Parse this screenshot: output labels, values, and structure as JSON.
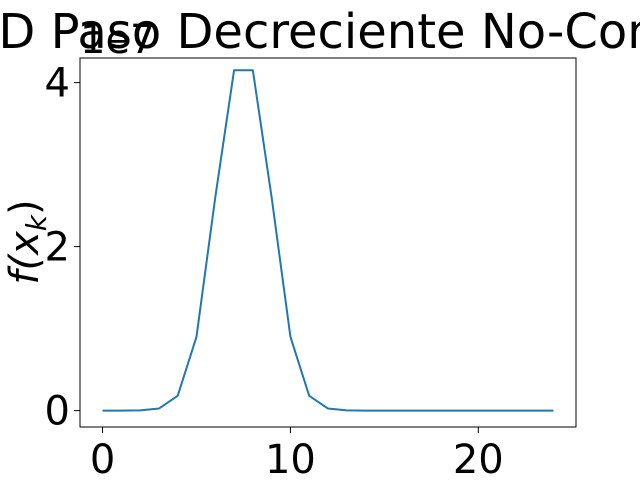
{
  "chart_data": {
    "type": "line",
    "title": "D Paso Decreciente No-Con",
    "xlabel": "",
    "ylabel": "f(x",
    "ylabel_subscript": "k",
    "ylabel_close": ")",
    "offset_label": "1e7",
    "xlim": [
      -1.2,
      25.2
    ],
    "ylim": [
      -0.2,
      4.3
    ],
    "x_ticks": [
      0,
      10,
      20
    ],
    "y_ticks": [
      0,
      2,
      4
    ],
    "grid": false,
    "series": [
      {
        "color": "#1f77b4",
        "x": [
          0,
          1,
          2,
          3,
          4,
          5,
          6,
          7,
          8,
          9,
          10,
          11,
          12,
          13,
          14,
          15,
          16,
          17,
          18,
          19,
          20,
          21,
          22,
          23,
          24
        ],
        "y": [
          0.0,
          0.0,
          0.003,
          0.025,
          0.18,
          0.9,
          2.6,
          4.15,
          4.15,
          2.6,
          0.9,
          0.18,
          0.025,
          0.003,
          0.0,
          0.0,
          0.0,
          0.0,
          0.0,
          0.0,
          0.0,
          0.0,
          0.0,
          0.0,
          0.0
        ]
      }
    ]
  }
}
